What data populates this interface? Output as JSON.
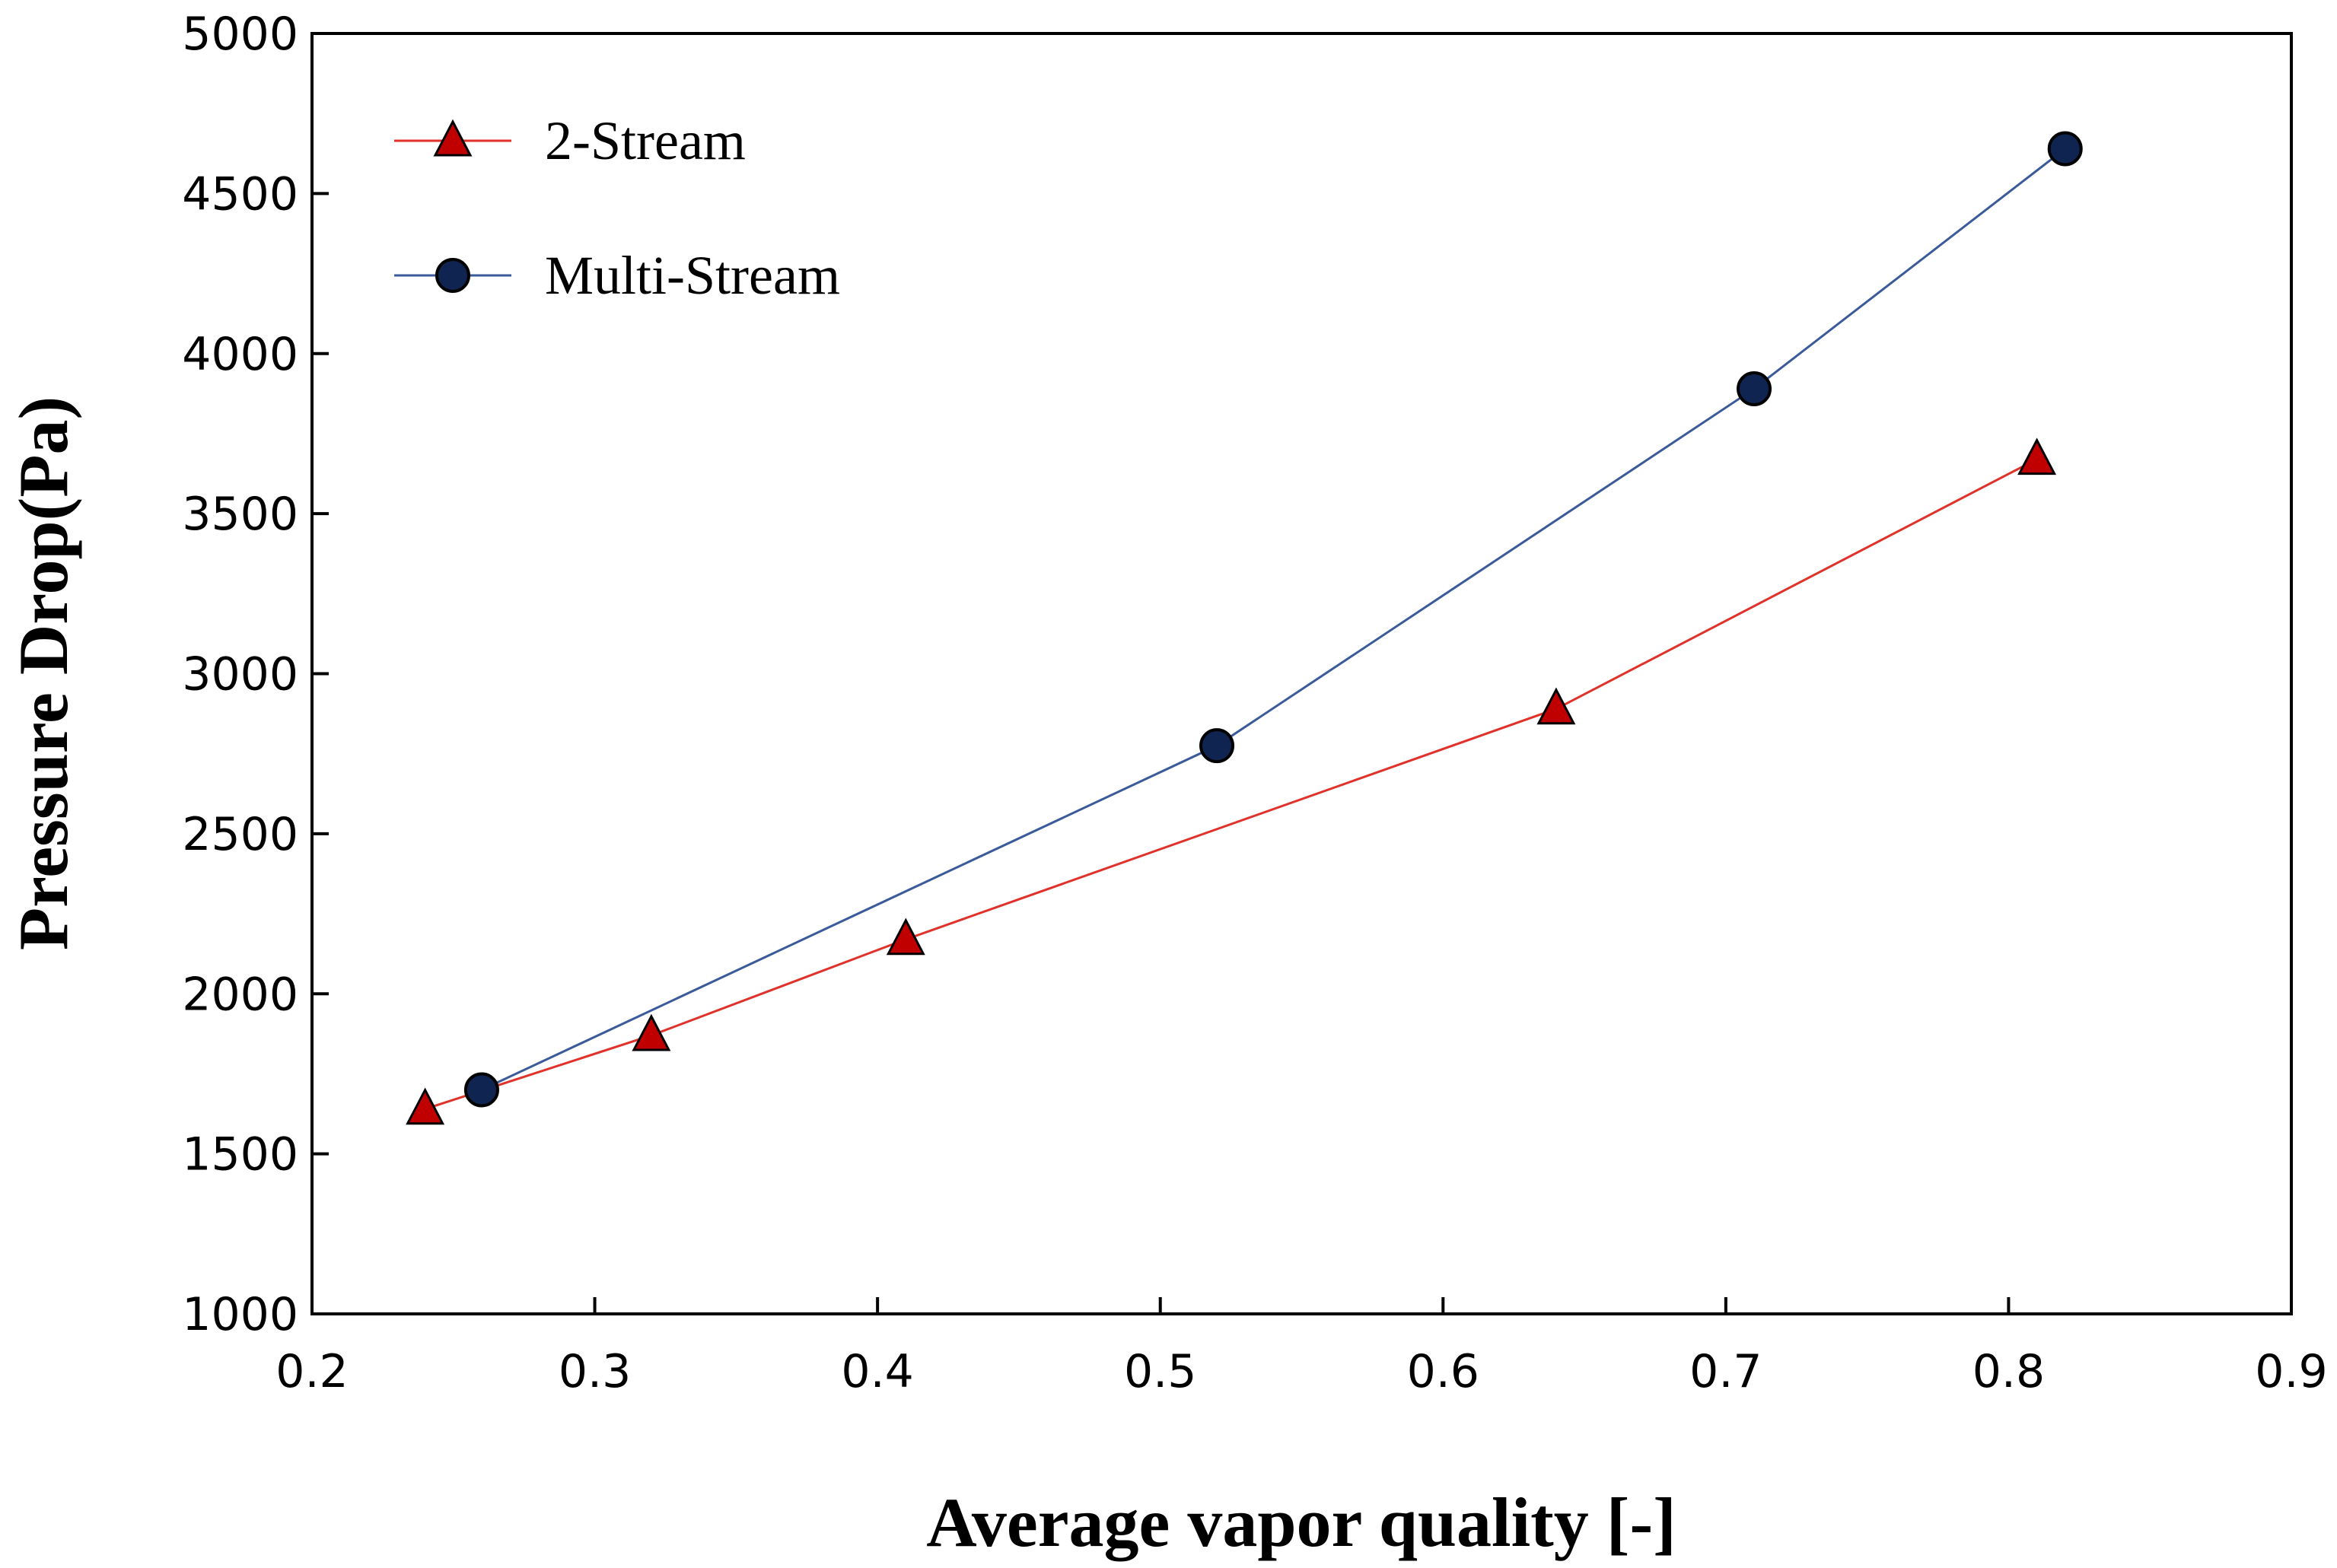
{
  "chart_data": {
    "type": "line",
    "title": "",
    "xlabel": "Average vapor quality [-]",
    "ylabel": "Pressure Drop(Pa)",
    "xlim": [
      0.2,
      0.9
    ],
    "ylim": [
      1000,
      5000
    ],
    "xticks": [
      0.2,
      0.3,
      0.4,
      0.5,
      0.6,
      0.7,
      0.8,
      0.9
    ],
    "yticks": [
      1000,
      1500,
      2000,
      2500,
      3000,
      3500,
      4000,
      4500,
      5000
    ],
    "xtick_labels": [
      "0.2",
      "0.3",
      "0.4",
      "0.5",
      "0.6",
      "0.7",
      "0.8",
      "0.9"
    ],
    "ytick_labels": [
      "1000",
      "1500",
      "2000",
      "2500",
      "3000",
      "3500",
      "4000",
      "4500",
      "5000"
    ],
    "grid": false,
    "legend_position": "top-left",
    "series": [
      {
        "name": "2-Stream",
        "marker": "triangle",
        "line_color": "#e0312a",
        "marker_color": "#c00000",
        "x": [
          0.24,
          0.32,
          0.41,
          0.64,
          0.81
        ],
        "y": [
          1640,
          1870,
          2170,
          2890,
          3670
        ]
      },
      {
        "name": "Multi-Stream",
        "marker": "circle",
        "line_color": "#3a5a9a",
        "marker_color": "#0f2450",
        "x": [
          0.26,
          0.52,
          0.71,
          0.82
        ],
        "y": [
          1700,
          2775,
          3890,
          4640
        ]
      }
    ]
  }
}
